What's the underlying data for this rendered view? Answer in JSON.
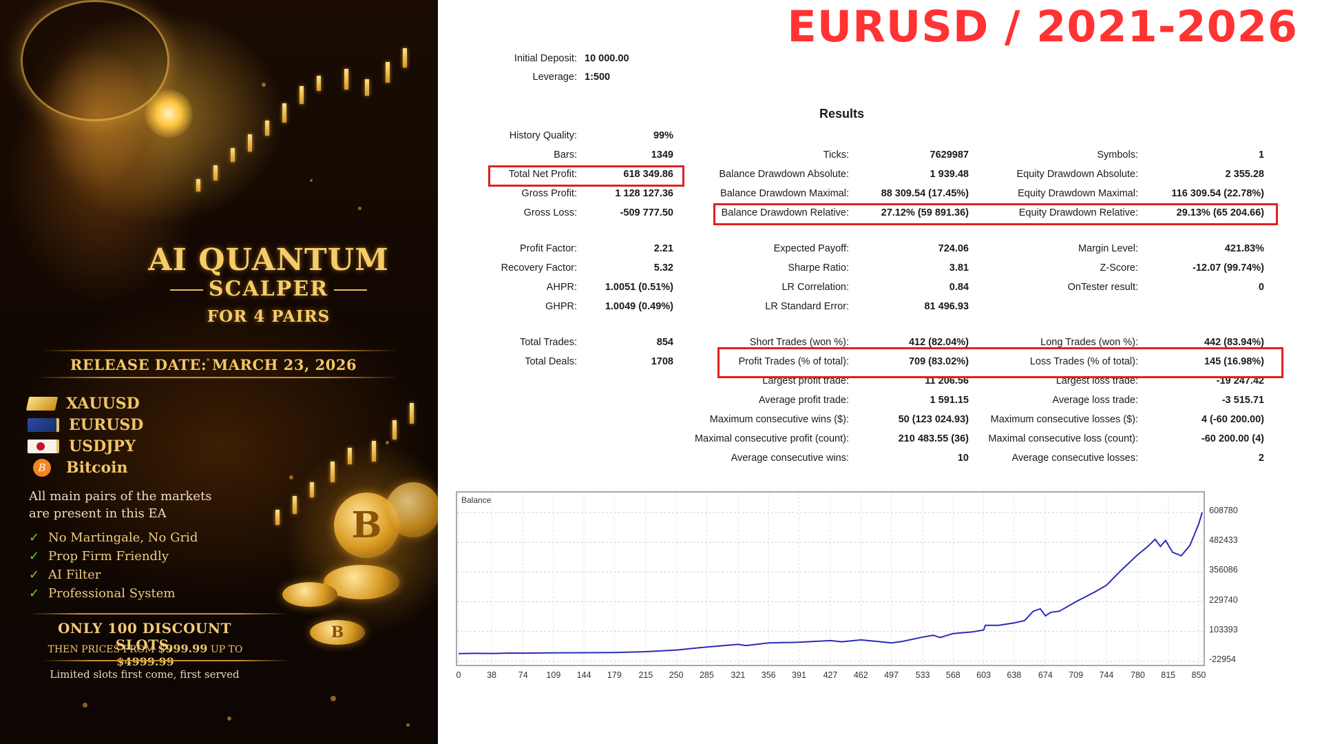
{
  "promo": {
    "title_line1": "AI QUANTUM",
    "title_line2": "SCALPER",
    "title_line3": "FOR 4 PAIRS",
    "release_date": "RELEASE DATE: MARCH 23, 2026",
    "pairs": [
      {
        "icon": "gold-bar-icon",
        "label": "XAUUSD"
      },
      {
        "icon": "eu-flag-icon",
        "label": "EURUSD"
      },
      {
        "icon": "japan-flag-icon",
        "label": "USDJPY"
      },
      {
        "icon": "bitcoin-icon",
        "label": "Bitcoin"
      }
    ],
    "description_line1": "All main pairs of the markets",
    "description_line2": "are present in this EA",
    "features": [
      "No Martingale, No Grid",
      "Prop Firm Friendly",
      "AI Filter",
      "Professional System"
    ],
    "slots_text": "ONLY 100 DISCOUNT SLOTS,",
    "prices_prefix": "THEN PRICES FROM",
    "price_from": "$999.99",
    "prices_mid": "UP TO",
    "price_to": "$4999.99",
    "limited_text": "Limited slots first come, first served",
    "accent_gold": "#f3c766",
    "check_color": "#7fcf3c"
  },
  "headline": {
    "text": "EURUSD / 2021-2026",
    "color": "#ff3333"
  },
  "report": {
    "initial_deposit": {
      "label": "Initial Deposit:",
      "value": "10 000.00"
    },
    "leverage": {
      "label": "Leverage:",
      "value": "1:500"
    },
    "results_title": "Results",
    "col1": [
      {
        "label": "History Quality:",
        "value": "99%"
      },
      {
        "label": "Bars:",
        "value": "1349"
      },
      {
        "label": "Total Net Profit:",
        "value": "618 349.86"
      },
      {
        "label": "Gross Profit:",
        "value": "1 128 127.36"
      },
      {
        "label": "Gross Loss:",
        "value": "-509 777.50"
      },
      {
        "label": "Profit Factor:",
        "value": "2.21"
      },
      {
        "label": "Recovery Factor:",
        "value": "5.32"
      },
      {
        "label": "AHPR:",
        "value": "1.0051 (0.51%)"
      },
      {
        "label": "GHPR:",
        "value": "1.0049 (0.49%)"
      },
      {
        "label": "Total Trades:",
        "value": "854"
      },
      {
        "label": "Total Deals:",
        "value": "1708"
      }
    ],
    "col2": [
      {
        "label": "Ticks:",
        "value": "7629987"
      },
      {
        "label": "Balance Drawdown Absolute:",
        "value": "1 939.48"
      },
      {
        "label": "Balance Drawdown Maximal:",
        "value": "88 309.54 (17.45%)"
      },
      {
        "label": "Balance Drawdown Relative:",
        "value": "27.12% (59 891.36)"
      },
      {
        "label": "Expected Payoff:",
        "value": "724.06"
      },
      {
        "label": "Sharpe Ratio:",
        "value": "3.81"
      },
      {
        "label": "LR Correlation:",
        "value": "0.84"
      },
      {
        "label": "LR Standard Error:",
        "value": "81 496.93"
      },
      {
        "label": "Short Trades (won %):",
        "value": "412 (82.04%)"
      },
      {
        "label": "Profit Trades (% of total):",
        "value": "709 (83.02%)"
      },
      {
        "label": "Largest profit trade:",
        "value": "11 206.56"
      },
      {
        "label": "Average profit trade:",
        "value": "1 591.15"
      },
      {
        "label": "Maximum consecutive wins ($):",
        "value": "50 (123 024.93)"
      },
      {
        "label": "Maximal consecutive profit (count):",
        "value": "210 483.55 (36)"
      },
      {
        "label": "Average consecutive wins:",
        "value": "10"
      }
    ],
    "col3": [
      {
        "label": "Symbols:",
        "value": "1"
      },
      {
        "label": "Equity Drawdown Absolute:",
        "value": "2 355.28"
      },
      {
        "label": "Equity Drawdown Maximal:",
        "value": "116 309.54 (22.78%)"
      },
      {
        "label": "Equity Drawdown Relative:",
        "value": "29.13% (65 204.66)"
      },
      {
        "label": "Margin Level:",
        "value": "421.83%"
      },
      {
        "label": "Z-Score:",
        "value": "-12.07 (99.74%)"
      },
      {
        "label": "OnTester result:",
        "value": "0"
      },
      {
        "label": "Long Trades (won %):",
        "value": "442 (83.94%)"
      },
      {
        "label": "Loss Trades (% of total):",
        "value": "145 (16.98%)"
      },
      {
        "label": "Largest loss trade:",
        "value": "-19 247.42"
      },
      {
        "label": "Average loss trade:",
        "value": "-3 515.71"
      },
      {
        "label": "Maximum consecutive losses ($):",
        "value": "4 (-60 200.00)"
      },
      {
        "label": "Maximal consecutive loss (count):",
        "value": "-60 200.00 (4)"
      },
      {
        "label": "Average consecutive losses:",
        "value": "2"
      }
    ],
    "highlight_color": "#e02020"
  },
  "chart_data": {
    "type": "line",
    "title": "Balance",
    "xlabel": "",
    "ylabel": "",
    "x_ticks": [
      "0",
      "38",
      "74",
      "109",
      "144",
      "179",
      "215",
      "250",
      "285",
      "321",
      "356",
      "391",
      "427",
      "462",
      "497",
      "533",
      "568",
      "603",
      "638",
      "674",
      "709",
      "744",
      "780",
      "815",
      "850"
    ],
    "y_ticks": [
      "608780",
      "482433",
      "356086",
      "229740",
      "103393",
      "-22954"
    ],
    "ylim": [
      -22954,
      640000
    ],
    "xlim": [
      0,
      854
    ],
    "grid": true,
    "line_color": "#2b2bb8",
    "series": [
      {
        "name": "Balance",
        "x": [
          0,
          20,
          38,
          60,
          74,
          100,
          144,
          179,
          215,
          250,
          285,
          321,
          330,
          356,
          391,
          427,
          440,
          462,
          480,
          497,
          510,
          533,
          545,
          553,
          568,
          590,
          603,
          605,
          620,
          638,
          650,
          660,
          668,
          674,
          680,
          690,
          709,
          730,
          744,
          760,
          780,
          790,
          800,
          806,
          812,
          820,
          830,
          840,
          850,
          854
        ],
        "y": [
          10000,
          11000,
          10500,
          12000,
          11800,
          13000,
          13500,
          14500,
          18000,
          25000,
          38000,
          49000,
          44000,
          55000,
          58000,
          65000,
          60000,
          68000,
          62000,
          55000,
          62000,
          80000,
          88000,
          78000,
          95000,
          102000,
          110000,
          130000,
          130000,
          140000,
          150000,
          190000,
          200000,
          170000,
          185000,
          190000,
          230000,
          270000,
          300000,
          360000,
          430000,
          460000,
          495000,
          465000,
          490000,
          440000,
          425000,
          470000,
          560000,
          610000
        ]
      }
    ]
  }
}
